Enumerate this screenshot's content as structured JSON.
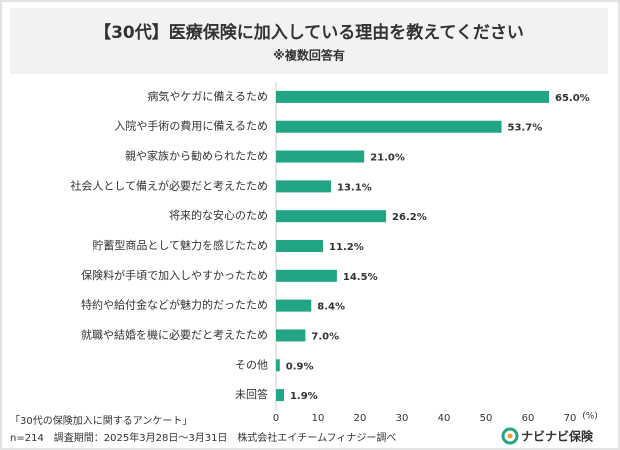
{
  "chart_data": {
    "type": "barh",
    "title": "【30代】医療保険に加入している理由を教えてください",
    "subtitle": "※複数回答有",
    "categories": [
      "病気やケガに備えるため",
      "入院や手術の費用に備えるため",
      "親や家族から勧められたため",
      "社会人として備えが必要だと考えたため",
      "将来的な安心のため",
      "貯蓄型商品として魅力を感じたため",
      "保険料が手頃で加入しやすかったため",
      "特約や給付金などが魅力的だったため",
      "就職や結婚を機に必要だと考えたため",
      "その他",
      "未回答"
    ],
    "values": [
      65.0,
      53.7,
      21.0,
      13.1,
      26.2,
      11.2,
      14.5,
      8.4,
      7.0,
      0.9,
      1.9
    ],
    "value_labels": [
      "65.0%",
      "53.7%",
      "21.0%",
      "13.1%",
      "26.2%",
      "11.2%",
      "14.5%",
      "8.4%",
      "7.0%",
      "0.9%",
      "1.9%"
    ],
    "color": "#22a585",
    "xlim": [
      0,
      70
    ],
    "xticks": [
      0,
      10,
      20,
      30,
      40,
      50,
      60,
      70
    ],
    "x_unit": "(%)",
    "grid": false
  },
  "footer": {
    "survey": "「30代の保険加入に関するアンケート」",
    "details": "n=214　調査期間：2025年3月28日〜3月31日　株式会社エイチームフィナジー調べ"
  },
  "logo": "ナビナビ保険"
}
